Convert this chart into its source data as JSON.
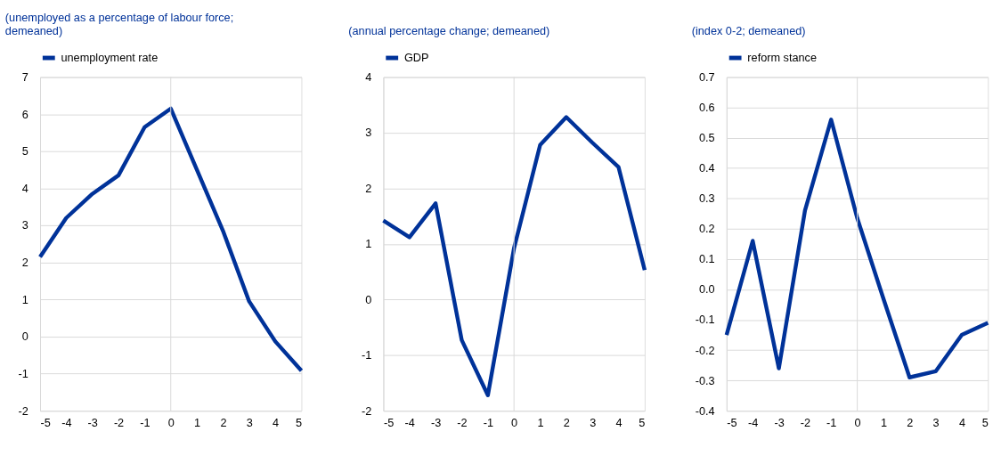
{
  "chart_data": [
    {
      "type": "line",
      "title": "(unemployed as a percentage of labour force; demeaned)",
      "x": [
        -5,
        -4,
        -3,
        -2,
        -1,
        0,
        1,
        2,
        3,
        4,
        5
      ],
      "xlim": [
        -5,
        5
      ],
      "xticks": [
        -5,
        -4,
        -3,
        -2,
        -1,
        0,
        1,
        2,
        3,
        4,
        5
      ],
      "ylim": [
        -2,
        7
      ],
      "yticks": [
        -2,
        -1,
        0,
        1,
        2,
        3,
        4,
        5,
        6,
        7
      ],
      "grid": "y",
      "legend": "top left",
      "ref_lines": [
        {
          "axis": "x",
          "value": 0,
          "color": "#d9d9d9"
        }
      ],
      "series": [
        {
          "name": "unemployment rate",
          "color": "#003299",
          "values": [
            2.15,
            3.2,
            3.85,
            4.35,
            5.65,
            6.15,
            4.5,
            2.85,
            0.95,
            -0.13,
            -0.92
          ]
        }
      ]
    },
    {
      "type": "line",
      "title": "(annual percentage change; demeaned)",
      "x": [
        -5,
        -4,
        -3,
        -2,
        -1,
        0,
        1,
        2,
        3,
        4,
        5
      ],
      "xlim": [
        -5,
        5
      ],
      "xticks": [
        -5,
        -4,
        -3,
        -2,
        -1,
        0,
        1,
        2,
        3,
        4,
        5
      ],
      "ylim": [
        -2,
        4
      ],
      "yticks": [
        -2,
        -1,
        0,
        1,
        2,
        3,
        4
      ],
      "grid": "y",
      "legend": "top left",
      "ref_lines": [
        {
          "axis": "x",
          "value": 0,
          "color": "#d9d9d9"
        }
      ],
      "series": [
        {
          "name": "GDP",
          "color": "#003299",
          "values": [
            1.42,
            1.12,
            1.73,
            -0.73,
            -1.72,
            0.92,
            2.78,
            3.28,
            2.82,
            2.38,
            0.53
          ]
        }
      ]
    },
    {
      "type": "line",
      "title": "(index 0-2; demeaned)",
      "x": [
        -5,
        -4,
        -3,
        -2,
        -1,
        0,
        1,
        2,
        3,
        4,
        5
      ],
      "xlim": [
        -5,
        5
      ],
      "xticks": [
        -5,
        -4,
        -3,
        -2,
        -1,
        0,
        1,
        2,
        3,
        4,
        5
      ],
      "ylim": [
        -0.4,
        0.7
      ],
      "yticks": [
        {
          "value": -0.4,
          "label": "-0.4"
        },
        {
          "value": -0.3,
          "label": "-0.3"
        },
        {
          "value": -0.2,
          "label": "-0.2"
        },
        {
          "value": -0.1,
          "label": "-0.1"
        },
        {
          "value": 0,
          "label": "0.0"
        },
        {
          "value": 0.1,
          "label": "0.1"
        },
        {
          "value": 0.2,
          "label": "0.2"
        },
        {
          "value": 0.3,
          "label": "0.3"
        },
        {
          "value": 0.4,
          "label": "0.4"
        },
        {
          "value": 0.5,
          "label": "0.5"
        },
        {
          "value": 0.6,
          "label": "0.6"
        },
        {
          "value": 0.7,
          "label": "0.7"
        }
      ],
      "grid": "y",
      "legend": "top left",
      "ref_lines": [
        {
          "axis": "x",
          "value": 0,
          "color": "#d9d9d9"
        }
      ],
      "series": [
        {
          "name": "reform stance",
          "color": "#003299",
          "values": [
            -0.15,
            0.16,
            -0.26,
            0.26,
            0.56,
            0.235,
            -0.03,
            -0.29,
            -0.27,
            -0.15,
            -0.11
          ]
        }
      ]
    }
  ]
}
